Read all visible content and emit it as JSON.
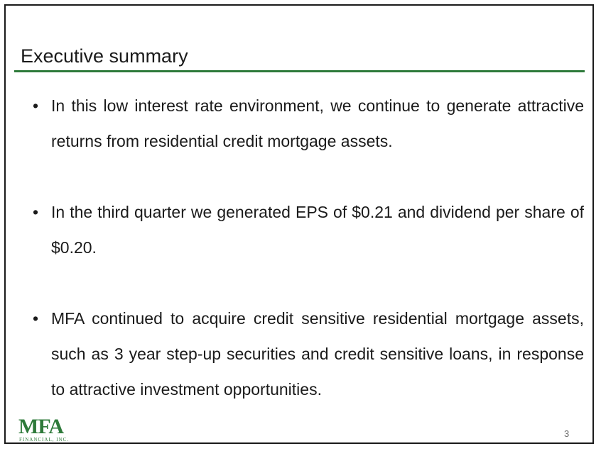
{
  "slide": {
    "title": "Executive summary",
    "bullets": [
      "In this low interest rate environment, we continue to generate attractive returns from residential credit mortgage assets.",
      "In the third quarter we generated EPS of $0.21 and dividend per share of $0.20.",
      "MFA continued to acquire credit sensitive residential mortgage assets, such as 3 year step-up securities and credit sensitive loans, in response to attractive investment opportunities."
    ],
    "bullet_symbol": "•",
    "page_number": "3"
  },
  "logo": {
    "mark": "MFA",
    "subtitle": "FINANCIAL, INC.",
    "color": "#2e7a3a"
  },
  "colors": {
    "accent_rule": "#2e7a3a",
    "text": "#1a1a1a"
  }
}
